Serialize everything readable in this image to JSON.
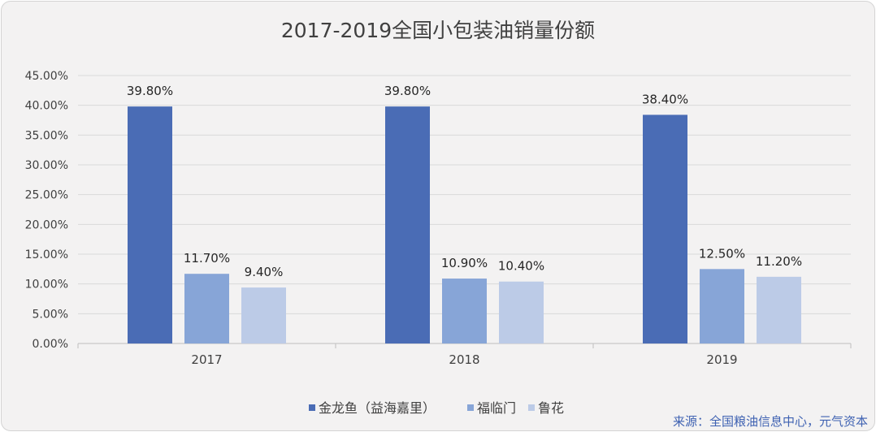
{
  "chart_data": {
    "type": "bar",
    "title": "2017-2019全国小包装油销量份额",
    "categories": [
      "2017",
      "2018",
      "2019"
    ],
    "series": [
      {
        "name": "金龙鱼（益海嘉里）",
        "color": "#4a6cb5",
        "values": [
          39.8,
          39.8,
          38.4
        ],
        "labels": [
          "39.80%",
          "39.80%",
          "38.40%"
        ]
      },
      {
        "name": "福临门",
        "color": "#87a5d7",
        "values": [
          11.7,
          10.9,
          12.5
        ],
        "labels": [
          "11.70%",
          "10.90%",
          "12.50%"
        ]
      },
      {
        "name": "鲁花",
        "color": "#bccbe7",
        "values": [
          9.4,
          10.4,
          11.2
        ],
        "labels": [
          "9.40%",
          "10.40%",
          "11.20%"
        ]
      }
    ],
    "yticks": [
      "0.00%",
      "5.00%",
      "10.00%",
      "15.00%",
      "20.00%",
      "25.00%",
      "30.00%",
      "35.00%",
      "40.00%",
      "45.00%"
    ],
    "ylim": [
      0,
      45
    ],
    "grid": true,
    "legend_position": "bottom",
    "xlabel": "",
    "ylabel": ""
  },
  "source": "来源：全国粮油信息中心，元气资本"
}
